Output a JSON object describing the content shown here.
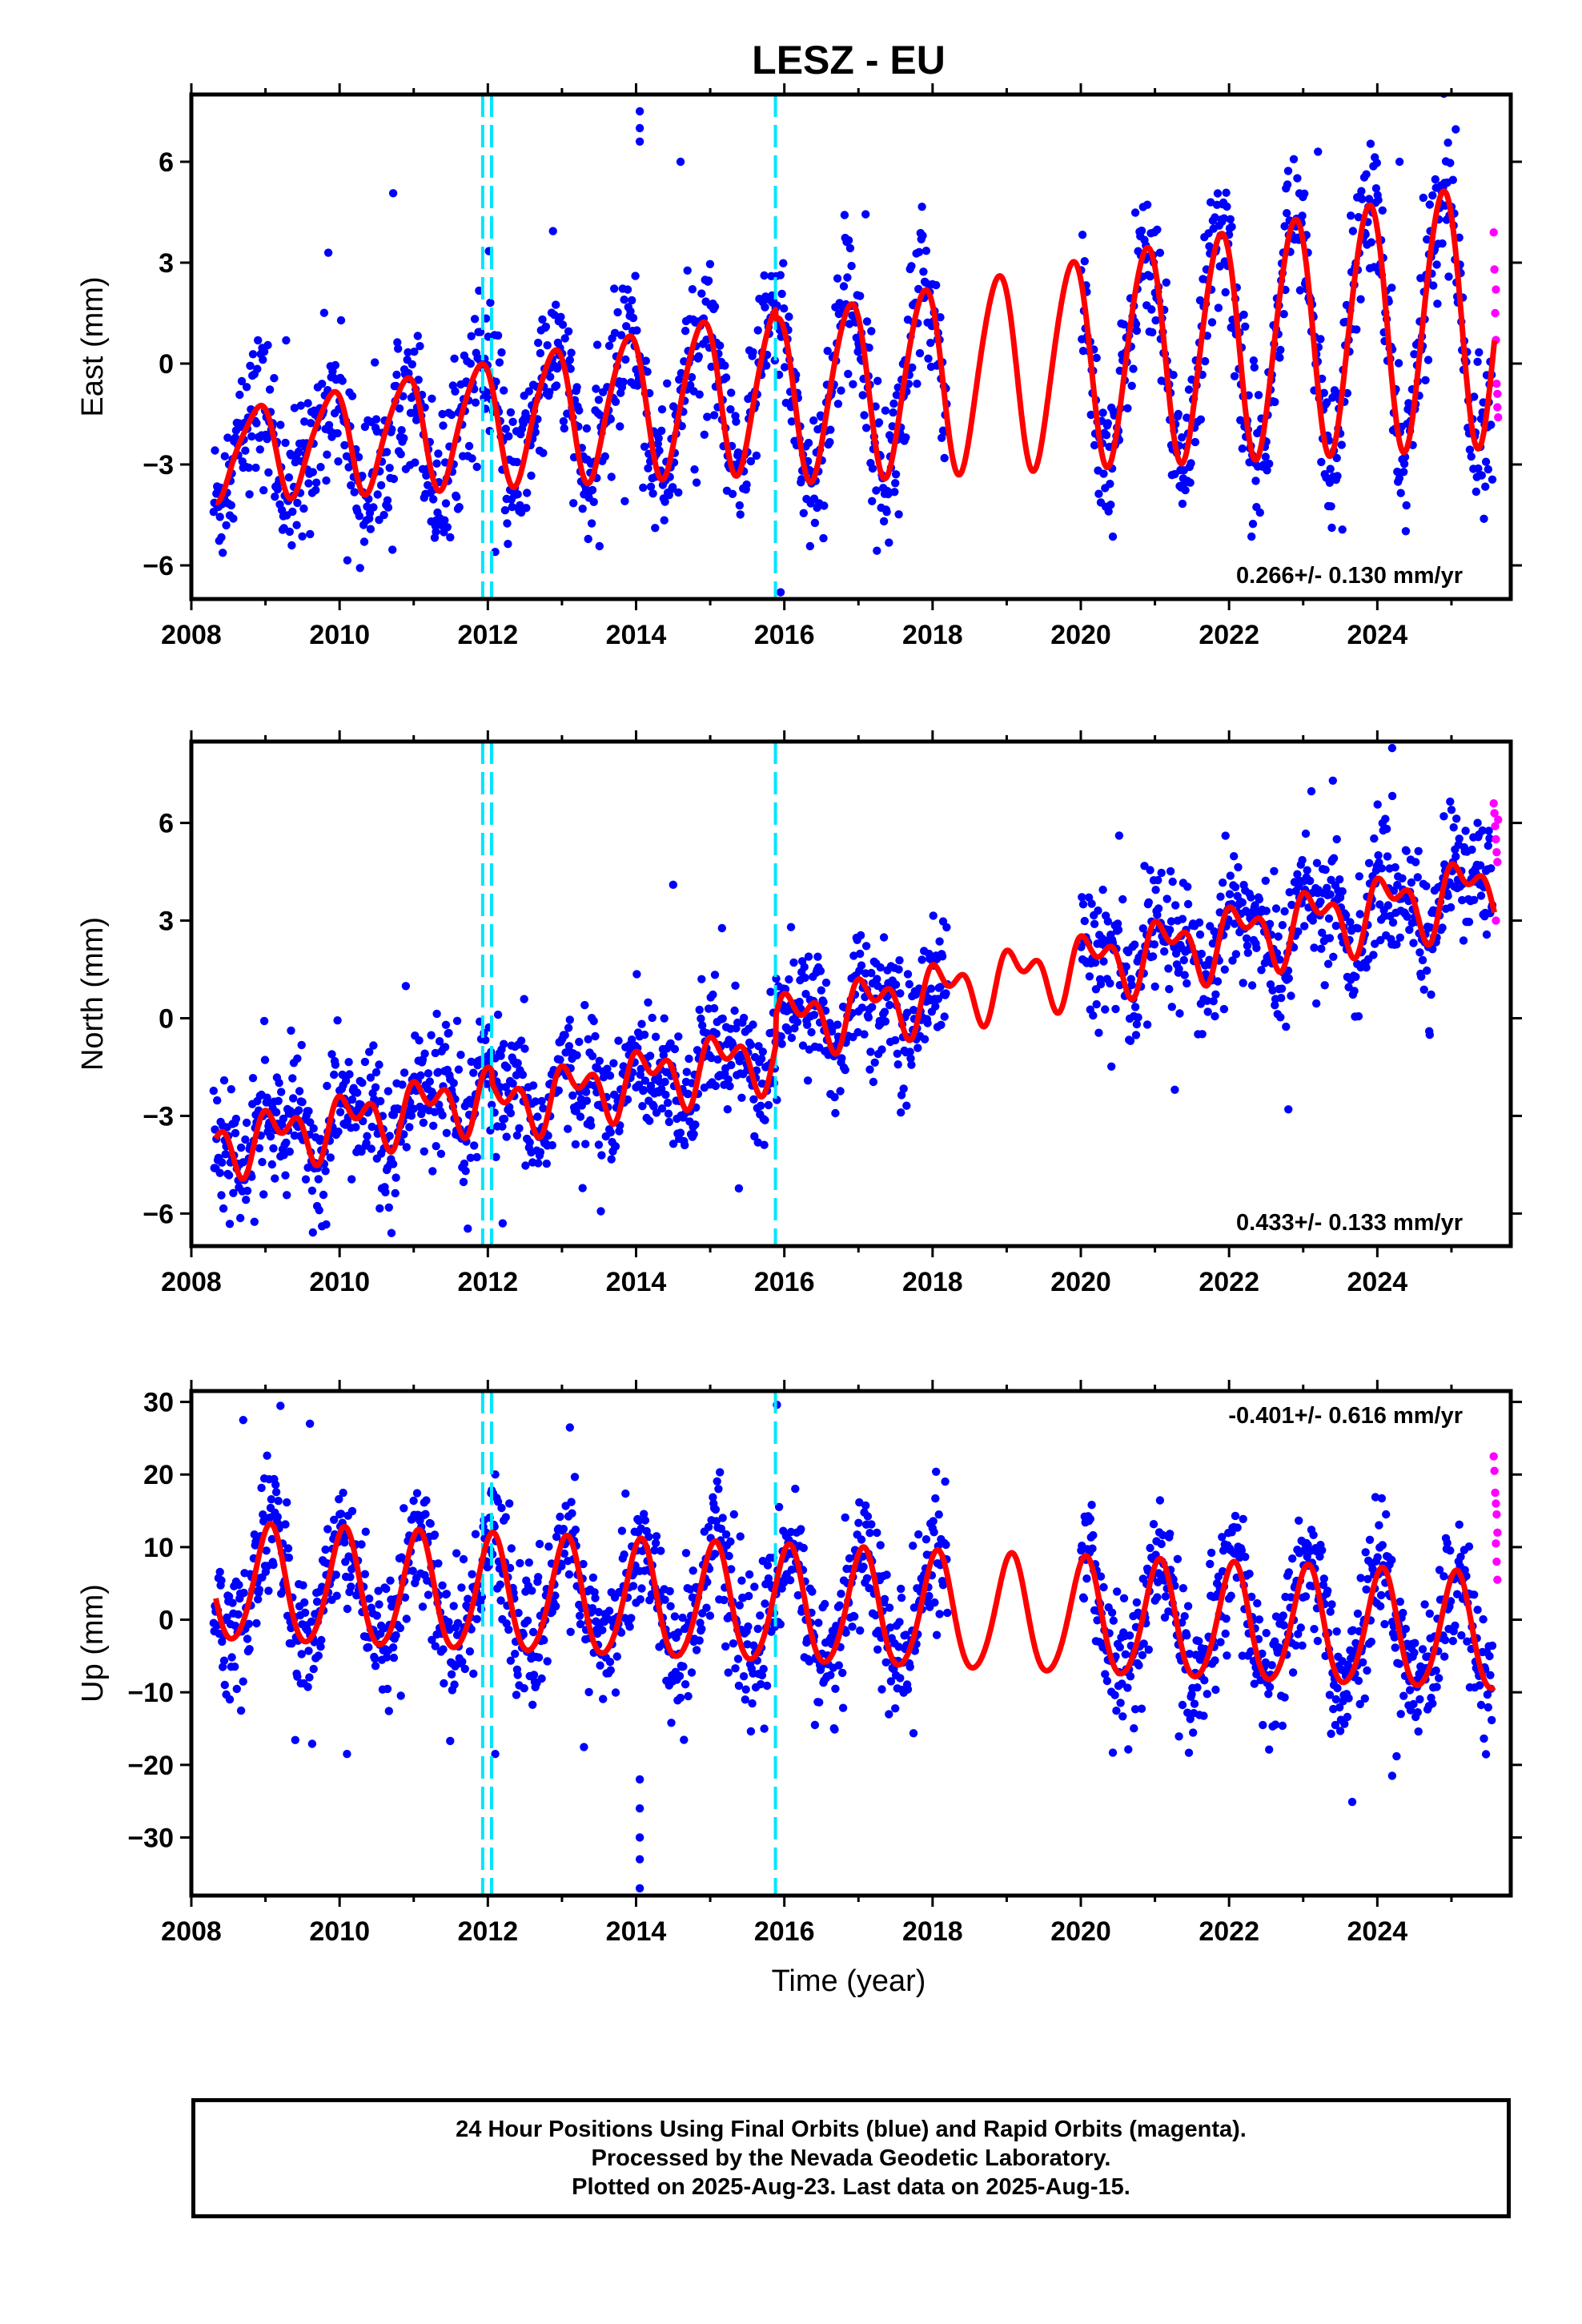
{
  "chart_data": {
    "type": "scatter",
    "title": "LESZ - EU",
    "xlabel": "Time (year)",
    "xlim": [
      2008,
      2025.8
    ],
    "xticks": [
      2008,
      2010,
      2012,
      2014,
      2016,
      2018,
      2020,
      2022,
      2024
    ],
    "breaks": [
      2011.93,
      2012.05,
      2015.88
    ],
    "colors": {
      "final": "#0000ff",
      "rapid": "#ff00ff",
      "model": "#ff0000",
      "break": "#00e5ff"
    },
    "panels": [
      {
        "id": "east",
        "ylabel": "East (mm)",
        "ylim": [
          -7,
          8
        ],
        "yticks": [
          -6,
          -3,
          0,
          3,
          6
        ],
        "rate": "0.266+/- 0.130 mm/yr",
        "rate_position": "bottom-right",
        "model": {
          "offset": -0.4,
          "trend": 0.266,
          "annual_amp": 2.6,
          "annual_phase": 2.35,
          "semi_amp": 0.25,
          "semi_phase": 1.0,
          "amp_growth": 0.06,
          "jumps": [
            [
              2015.88,
              -0.3
            ]
          ]
        },
        "noise": 1.1,
        "outliers": [
          [
            2014.05,
            7.5
          ],
          [
            2014.05,
            7.0
          ],
          [
            2014.05,
            6.6
          ],
          [
            2015.95,
            -6.8
          ],
          [
            2011.3,
            -5.0
          ],
          [
            2012.1,
            -5.6
          ],
          [
            2014.6,
            6.0
          ],
          [
            2023.2,
            6.3
          ],
          [
            2024.3,
            6.0
          ]
        ],
        "rapid": [
          [
            2025.57,
            3.9
          ],
          [
            2025.58,
            2.8
          ],
          [
            2025.59,
            1.5
          ],
          [
            2025.6,
            0.7
          ],
          [
            2025.61,
            -0.6
          ],
          [
            2025.62,
            -1.3
          ],
          [
            2025.63,
            -1.6
          ],
          [
            2025.6,
            2.2
          ],
          [
            2025.62,
            -0.9
          ]
        ]
      },
      {
        "id": "north",
        "ylabel": "North (mm)",
        "ylim": [
          -7,
          8.5
        ],
        "yticks": [
          -6,
          -3,
          0,
          3,
          6
        ],
        "rate": "0.433+/- 0.133 mm/yr",
        "rate_position": "bottom-right",
        "model": {
          "offset": -0.2,
          "trend": 0.433,
          "annual_amp": 0.75,
          "annual_phase": 0.6,
          "semi_amp": 0.55,
          "semi_phase": 2.1,
          "amp_growth": 0.02,
          "jumps": [
            [
              2012.05,
              -0.4
            ],
            [
              2015.88,
              0.9
            ]
          ]
        },
        "noise": 0.95,
        "outliers": [
          [
            2023.4,
            7.3
          ],
          [
            2024.2,
            8.3
          ],
          [
            2022.8,
            -2.8
          ],
          [
            2024.7,
            -0.4
          ],
          [
            2010.7,
            -6.6
          ],
          [
            2012.2,
            -6.3
          ],
          [
            2014.5,
            4.1
          ]
        ],
        "rapid": [
          [
            2025.57,
            6.6
          ],
          [
            2025.58,
            6.3
          ],
          [
            2025.59,
            5.9
          ],
          [
            2025.6,
            5.5
          ],
          [
            2025.61,
            5.1
          ],
          [
            2025.62,
            4.8
          ],
          [
            2025.6,
            3.0
          ],
          [
            2025.63,
            6.1
          ]
        ]
      },
      {
        "id": "up",
        "ylabel": "Up (mm)",
        "ylim": [
          -38,
          31.5
        ],
        "yticks": [
          -30,
          -20,
          -10,
          0,
          10,
          20,
          30
        ],
        "rate": "-0.401+/- 0.616 mm/yr",
        "rate_position": "top-right",
        "model": {
          "offset": 1.3,
          "trend": -0.401,
          "annual_amp": 8.0,
          "annual_phase": 1.2,
          "semi_amp": 0.8,
          "semi_phase": 0.4,
          "amp_growth": 0.0,
          "jumps": []
        },
        "noise": 4.6,
        "outliers": [
          [
            2014.05,
            -22
          ],
          [
            2014.05,
            -26
          ],
          [
            2014.05,
            -30
          ],
          [
            2014.05,
            -33
          ],
          [
            2014.05,
            -37
          ],
          [
            2015.9,
            29.6
          ],
          [
            2008.7,
            27.5
          ],
          [
            2009.6,
            27
          ],
          [
            2012.1,
            -18.5
          ],
          [
            2010.1,
            -18.5
          ],
          [
            2024.2,
            -21.5
          ]
        ],
        "rapid": [
          [
            2025.57,
            22.5
          ],
          [
            2025.58,
            20.5
          ],
          [
            2025.59,
            17.5
          ],
          [
            2025.6,
            16.0
          ],
          [
            2025.61,
            14.5
          ],
          [
            2025.62,
            12.0
          ],
          [
            2025.6,
            10.5
          ],
          [
            2025.61,
            8.0
          ],
          [
            2025.62,
            5.5
          ]
        ]
      }
    ],
    "data_gaps": [
      [
        2018.2,
        2020.0
      ]
    ]
  },
  "footer": {
    "line1": "24 Hour Positions Using Final Orbits (blue) and Rapid Orbits (magenta).",
    "line2": "Processed by the Nevada Geodetic Laboratory.",
    "line3": "Plotted on 2025-Aug-23. Last data on 2025-Aug-15."
  }
}
